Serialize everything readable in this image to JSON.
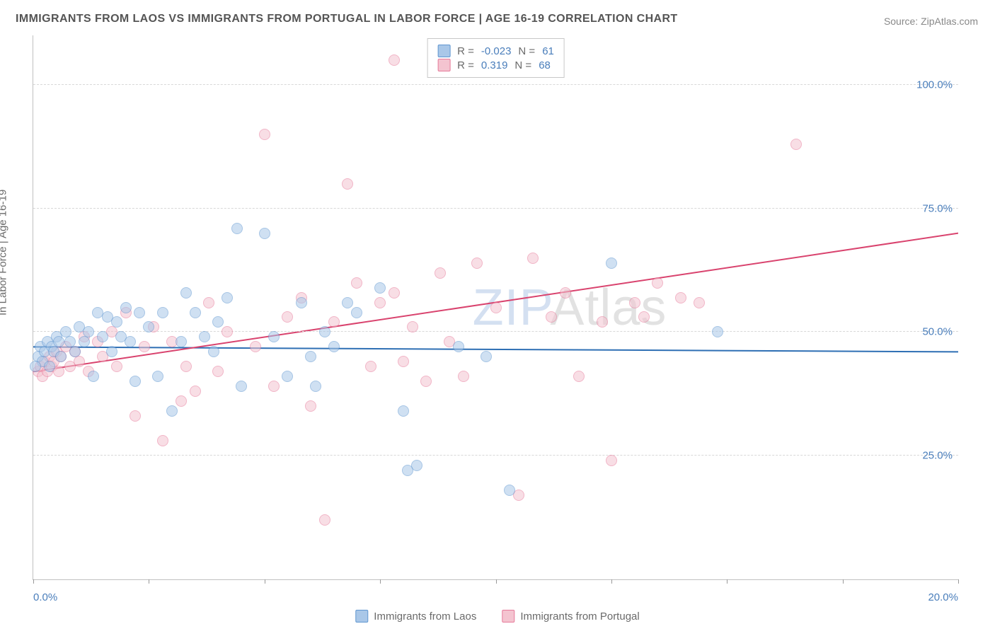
{
  "title": "IMMIGRANTS FROM LAOS VS IMMIGRANTS FROM PORTUGAL IN LABOR FORCE | AGE 16-19 CORRELATION CHART",
  "source": "Source: ZipAtlas.com",
  "ylabel": "In Labor Force | Age 16-19",
  "watermark": {
    "zip": "ZIP",
    "atlas": "Atlas"
  },
  "chart": {
    "type": "scatter",
    "background_color": "#ffffff",
    "grid_color": "#d8d8d8",
    "axis_color": "#c0c0c0",
    "tick_color": "#9a9a9a",
    "xlim": [
      0,
      20
    ],
    "ylim": [
      0,
      110
    ],
    "x_ticks": [
      0,
      2.5,
      5,
      7.5,
      10,
      12.5,
      15,
      17.5,
      20
    ],
    "x_tick_labels_shown": {
      "0": "0.0%",
      "20": "20.0%"
    },
    "y_grid": [
      25,
      50,
      75,
      100
    ],
    "y_tick_labels": {
      "25": "25.0%",
      "50": "50.0%",
      "75": "75.0%",
      "100": "100.0%"
    },
    "marker_radius": 8,
    "marker_opacity": 0.55,
    "title_fontsize": 16,
    "label_fontsize": 15,
    "tick_fontsize": 15,
    "tick_label_color": "#4a7ebb"
  },
  "series": {
    "laos": {
      "label": "Immigrants from Laos",
      "fill": "#a9c7e8",
      "stroke": "#5f96d0",
      "line_color": "#2e6fb4",
      "line_width": 2,
      "R": "-0.023",
      "N": "61",
      "trend": {
        "x1": 0,
        "y1": 47,
        "x2": 20,
        "y2": 46
      },
      "points": [
        [
          0.1,
          45
        ],
        [
          0.15,
          47
        ],
        [
          0.2,
          44
        ],
        [
          0.25,
          46
        ],
        [
          0.3,
          48
        ],
        [
          0.35,
          43
        ],
        [
          0.4,
          47
        ],
        [
          0.45,
          46
        ],
        [
          0.5,
          49
        ],
        [
          0.55,
          48
        ],
        [
          0.6,
          45
        ],
        [
          0.7,
          50
        ],
        [
          0.8,
          48
        ],
        [
          0.9,
          46
        ],
        [
          1.0,
          51
        ],
        [
          1.1,
          48
        ],
        [
          1.2,
          50
        ],
        [
          1.3,
          41
        ],
        [
          1.4,
          54
        ],
        [
          1.5,
          49
        ],
        [
          1.6,
          53
        ],
        [
          1.7,
          46
        ],
        [
          1.8,
          52
        ],
        [
          1.9,
          49
        ],
        [
          2.0,
          55
        ],
        [
          2.1,
          48
        ],
        [
          2.2,
          40
        ],
        [
          2.3,
          54
        ],
        [
          2.5,
          51
        ],
        [
          2.7,
          41
        ],
        [
          2.8,
          54
        ],
        [
          3.0,
          34
        ],
        [
          3.2,
          48
        ],
        [
          3.3,
          58
        ],
        [
          3.5,
          54
        ],
        [
          3.7,
          49
        ],
        [
          3.9,
          46
        ],
        [
          4.0,
          52
        ],
        [
          4.2,
          57
        ],
        [
          4.4,
          71
        ],
        [
          4.5,
          39
        ],
        [
          5.0,
          70
        ],
        [
          5.2,
          49
        ],
        [
          5.5,
          41
        ],
        [
          5.8,
          56
        ],
        [
          6.0,
          45
        ],
        [
          6.1,
          39
        ],
        [
          6.3,
          50
        ],
        [
          6.5,
          47
        ],
        [
          6.8,
          56
        ],
        [
          7.0,
          54
        ],
        [
          7.5,
          59
        ],
        [
          8.0,
          34
        ],
        [
          8.1,
          22
        ],
        [
          8.3,
          23
        ],
        [
          9.2,
          47
        ],
        [
          9.8,
          45
        ],
        [
          10.3,
          18
        ],
        [
          12.5,
          64
        ],
        [
          14.8,
          50
        ],
        [
          0.05,
          43
        ]
      ]
    },
    "portugal": {
      "label": "Immigrants from Portugal",
      "fill": "#f4c4d0",
      "stroke": "#e67a9a",
      "line_color": "#d9436e",
      "line_width": 2,
      "R": "0.319",
      "N": "68",
      "trend": {
        "x1": 0,
        "y1": 42,
        "x2": 20,
        "y2": 70
      },
      "points": [
        [
          0.1,
          42
        ],
        [
          0.15,
          43
        ],
        [
          0.2,
          41
        ],
        [
          0.25,
          44
        ],
        [
          0.3,
          42
        ],
        [
          0.35,
          45
        ],
        [
          0.4,
          43
        ],
        [
          0.45,
          44
        ],
        [
          0.5,
          46
        ],
        [
          0.55,
          42
        ],
        [
          0.6,
          45
        ],
        [
          0.7,
          47
        ],
        [
          0.8,
          43
        ],
        [
          0.9,
          46
        ],
        [
          1.0,
          44
        ],
        [
          1.1,
          49
        ],
        [
          1.2,
          42
        ],
        [
          1.4,
          48
        ],
        [
          1.5,
          45
        ],
        [
          1.7,
          50
        ],
        [
          1.8,
          43
        ],
        [
          2.0,
          54
        ],
        [
          2.2,
          33
        ],
        [
          2.4,
          47
        ],
        [
          2.6,
          51
        ],
        [
          2.8,
          28
        ],
        [
          3.0,
          48
        ],
        [
          3.2,
          36
        ],
        [
          3.3,
          43
        ],
        [
          3.5,
          38
        ],
        [
          3.8,
          56
        ],
        [
          4.0,
          42
        ],
        [
          4.2,
          50
        ],
        [
          4.8,
          47
        ],
        [
          5.0,
          90
        ],
        [
          5.2,
          39
        ],
        [
          5.5,
          53
        ],
        [
          5.8,
          57
        ],
        [
          6.0,
          35
        ],
        [
          6.3,
          12
        ],
        [
          6.5,
          52
        ],
        [
          6.8,
          80
        ],
        [
          7.0,
          60
        ],
        [
          7.3,
          43
        ],
        [
          7.5,
          56
        ],
        [
          7.8,
          58
        ],
        [
          8.0,
          44
        ],
        [
          8.2,
          51
        ],
        [
          8.5,
          40
        ],
        [
          8.8,
          62
        ],
        [
          9.0,
          48
        ],
        [
          9.3,
          41
        ],
        [
          9.6,
          64
        ],
        [
          10.0,
          55
        ],
        [
          10.5,
          17
        ],
        [
          10.8,
          65
        ],
        [
          11.2,
          53
        ],
        [
          11.5,
          58
        ],
        [
          11.8,
          41
        ],
        [
          12.3,
          52
        ],
        [
          12.5,
          24
        ],
        [
          13.0,
          56
        ],
        [
          13.2,
          53
        ],
        [
          13.5,
          60
        ],
        [
          14.0,
          57
        ],
        [
          14.4,
          56
        ],
        [
          16.5,
          88
        ],
        [
          7.8,
          105
        ]
      ]
    }
  },
  "legend_top": {
    "R_label": "R =",
    "N_label": "N ="
  }
}
